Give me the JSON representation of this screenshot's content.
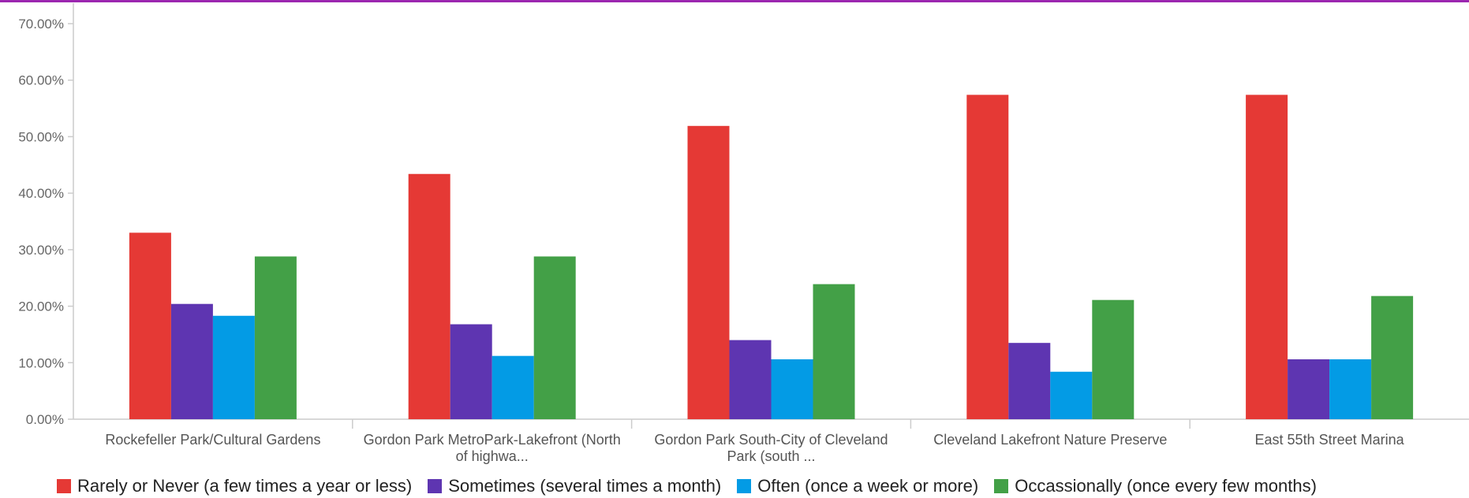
{
  "colors": {
    "border": "#9c27b0",
    "axis": "#cccccc",
    "rarely": "#e53935",
    "sometimes": "#5e35b1",
    "often": "#039be5",
    "occasionally": "#43a047"
  },
  "chart_data": {
    "type": "bar",
    "title": "",
    "xlabel": "",
    "ylabel": "",
    "ylim": [
      0,
      70
    ],
    "yticks": [
      "0.00%",
      "10.00%",
      "20.00%",
      "30.00%",
      "40.00%",
      "50.00%",
      "60.00%",
      "70.00%"
    ],
    "grid": false,
    "legend_position": "bottom",
    "categories": [
      [
        "Rockefeller Park/Cultural Gardens"
      ],
      [
        "Gordon Park MetroPark-Lakefront (North",
        "of highwa..."
      ],
      [
        "Gordon Park South-City of Cleveland",
        "Park (south ..."
      ],
      [
        "Cleveland Lakefront Nature Preserve"
      ],
      [
        "East 55th Street Marina"
      ]
    ],
    "series": [
      {
        "name": "Rarely or Never (a few times a year or less)",
        "color": "#e53935",
        "values": [
          33.0,
          43.4,
          51.9,
          57.4,
          57.4
        ]
      },
      {
        "name": "Sometimes (several times a month)",
        "color": "#5e35b1",
        "values": [
          20.4,
          16.8,
          14.0,
          13.5,
          10.6
        ]
      },
      {
        "name": "Often (once a week or more)",
        "color": "#039be5",
        "values": [
          18.3,
          11.2,
          10.6,
          8.4,
          10.6
        ]
      },
      {
        "name": "Occassionally (once every few months)",
        "color": "#43a047",
        "values": [
          28.8,
          28.8,
          23.9,
          21.1,
          21.8
        ]
      }
    ]
  }
}
